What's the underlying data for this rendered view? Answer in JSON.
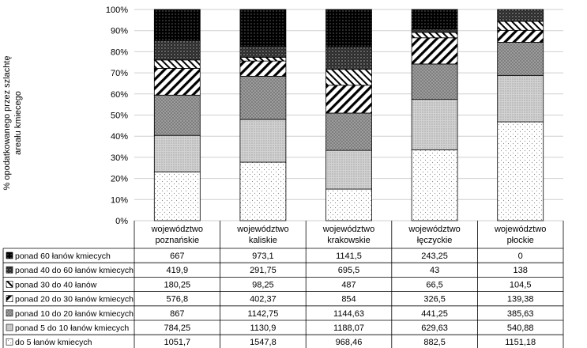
{
  "chart_data": {
    "type": "bar",
    "stacked": "percent",
    "ylabel": "% opodatkowanego przez szlachtę areału kmiecego",
    "ylim": [
      0,
      100
    ],
    "yticks": [
      "0%",
      "10%",
      "20%",
      "30%",
      "40%",
      "50%",
      "60%",
      "70%",
      "80%",
      "90%",
      "100%"
    ],
    "categories": [
      [
        "województwo",
        "poznańskie"
      ],
      [
        "województwo",
        "kaliskie"
      ],
      [
        "województwo",
        "krakowskie"
      ],
      [
        "województwo",
        "łęczyckie"
      ],
      [
        "województwo",
        "płockie"
      ]
    ],
    "legend_placement": "data-table",
    "series": [
      {
        "name": "do 5 łanów kmiecych",
        "values": [
          1051.7,
          1547.8,
          968.46,
          882.5,
          1151.18
        ],
        "labels": [
          "1051,7",
          "1547,8",
          "968,46",
          "882,5",
          "1151,18"
        ],
        "pattern": "fine-dots"
      },
      {
        "name": "ponad 5 do 10 łanów kmiecych",
        "values": [
          784.25,
          1130.9,
          1188.07,
          629.63,
          540.88
        ],
        "labels": [
          "784,25",
          "1130,9",
          "1188,07",
          "629,63",
          "540,88"
        ],
        "pattern": "dense-dots"
      },
      {
        "name": "ponad 10 do 20 łanów kmiecych",
        "values": [
          867,
          1142.75,
          1144.63,
          441.25,
          385.63
        ],
        "labels": [
          "867",
          "1142,75",
          "1144,63",
          "441,25",
          "385,63"
        ],
        "pattern": "gray-dots"
      },
      {
        "name": "ponad 20 do 30 łanów kmiecych",
        "values": [
          576.8,
          402.37,
          854,
          326.5,
          139.38
        ],
        "labels": [
          "576,8",
          "402,37",
          "854",
          "326,5",
          "139,38"
        ],
        "pattern": "wide-diagonal"
      },
      {
        "name": "ponad 30 do 40 łanów",
        "values": [
          180.25,
          98.25,
          487,
          66.5,
          104.5
        ],
        "labels": [
          "180,25",
          "98,25",
          "487",
          "66,5",
          "104,5"
        ],
        "pattern": "thin-diagonal"
      },
      {
        "name": "ponad 40 do 60 łanów kmiecych",
        "values": [
          419.9,
          291.75,
          695.5,
          43,
          138
        ],
        "labels": [
          "419,9",
          "291,75",
          "695,5",
          "43",
          "138"
        ],
        "pattern": "dark-dots"
      },
      {
        "name": "ponad 60 łanów kmiecych",
        "values": [
          667,
          973.1,
          1141.5,
          243.25,
          0
        ],
        "labels": [
          "667",
          "973,1",
          "1141,5",
          "243,25",
          "0"
        ],
        "pattern": "black-dots"
      }
    ]
  }
}
